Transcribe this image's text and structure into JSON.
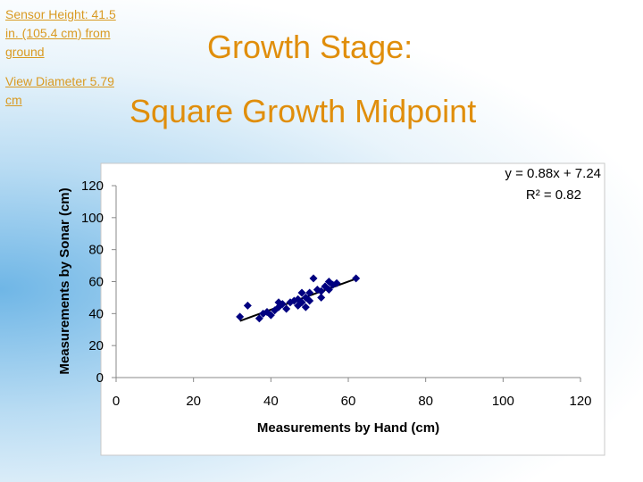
{
  "header": {
    "sensor_height": "Sensor Height: 41.5 in. (105.4 cm) from ground",
    "view_diameter": "View Diameter 5.79 cm",
    "title_line1": "Growth Stage:",
    "title_line2": "Square Growth Midpoint"
  },
  "chart_data": {
    "type": "scatter",
    "x_label": "Measurements by Hand (cm)",
    "y_label": "Measurements by Sonar (cm)",
    "annotations": [
      "y = 0.88x + 7.24",
      "R² = 0.82"
    ],
    "series": [
      {
        "color": "#000080",
        "x": [
          32,
          34,
          37,
          38,
          39,
          40,
          41,
          42,
          42,
          43,
          44,
          45,
          46,
          47,
          47,
          48,
          48,
          49,
          49,
          50,
          50,
          51,
          52,
          53,
          53,
          54,
          55,
          55,
          56,
          57,
          62
        ],
        "values": [
          38,
          45,
          37,
          40,
          41,
          39,
          42,
          47,
          44,
          46,
          43,
          47,
          48,
          45,
          49,
          53,
          47,
          44,
          50,
          48,
          53,
          62,
          55,
          54,
          50,
          57,
          55,
          60,
          58,
          59,
          62
        ]
      }
    ],
    "trendline": {
      "x": [
        32,
        62
      ],
      "values": [
        35.4,
        61.8
      ],
      "color": "#000000"
    },
    "xlim": [
      0,
      120
    ],
    "xticks": [
      0,
      20,
      40,
      60,
      80,
      100,
      120
    ],
    "ylim": [
      0,
      120
    ],
    "yticks": [
      0,
      20,
      40,
      60,
      80,
      100,
      120
    ],
    "grid": false
  }
}
